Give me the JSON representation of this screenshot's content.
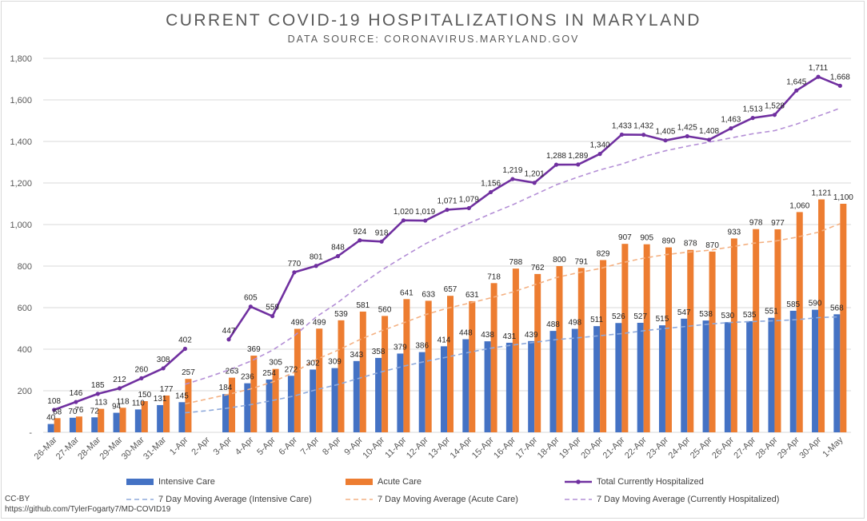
{
  "header": {
    "title": "CURRENT COVID-19 HOSPITALIZATIONS IN MARYLAND",
    "subtitle": "DATA SOURCE: CORONAVIRUS.MARYLAND.GOV"
  },
  "footer": {
    "license": "CC-BY",
    "url": "https://github.com/TylerFogarty7/MD-COVID19"
  },
  "colors": {
    "icu": "#4472c4",
    "acute": "#ed7d31",
    "total": "#7030a0",
    "avg_icu": "#8faadc",
    "avg_acute": "#f4b183",
    "avg_total": "#b48fd6"
  },
  "chart_data": {
    "type": "bar",
    "categories": [
      "26-Mar",
      "27-Mar",
      "28-Mar",
      "29-Mar",
      "30-Mar",
      "31-Mar",
      "1-Apr",
      "2-Apr",
      "3-Apr",
      "4-Apr",
      "5-Apr",
      "6-Apr",
      "7-Apr",
      "8-Apr",
      "9-Apr",
      "10-Apr",
      "11-Apr",
      "12-Apr",
      "13-Apr",
      "14-Apr",
      "15-Apr",
      "16-Apr",
      "17-Apr",
      "18-Apr",
      "19-Apr",
      "20-Apr",
      "21-Apr",
      "22-Apr",
      "23-Apr",
      "24-Apr",
      "25-Apr",
      "26-Apr",
      "27-Apr",
      "28-Apr",
      "29-Apr",
      "30-Apr",
      "1-May"
    ],
    "ylim": [
      0,
      1800
    ],
    "yticks": [
      0,
      200,
      400,
      600,
      800,
      1000,
      1200,
      1400,
      1600,
      1800
    ],
    "ytick_labels": [
      "-",
      "200",
      "400",
      "600",
      "800",
      "1,000",
      "1,200",
      "1,400",
      "1,600",
      "1,800"
    ],
    "grid": true,
    "legend_position": "bottom",
    "series": [
      {
        "name": "Intensive Care",
        "kind": "bar",
        "values": [
          40,
          70,
          72,
          94,
          110,
          131,
          145,
          null,
          184,
          236,
          254,
          272,
          302,
          309,
          343,
          358,
          379,
          386,
          414,
          448,
          438,
          431,
          439,
          488,
          498,
          511,
          526,
          527,
          515,
          547,
          538,
          530,
          535,
          551,
          585,
          590,
          568
        ]
      },
      {
        "name": "Acute Care",
        "kind": "bar",
        "values": [
          68,
          76,
          113,
          118,
          150,
          177,
          257,
          null,
          263,
          369,
          305,
          498,
          499,
          539,
          581,
          560,
          641,
          633,
          657,
          631,
          718,
          788,
          762,
          800,
          791,
          829,
          907,
          905,
          890,
          878,
          870,
          933,
          978,
          977,
          1060,
          1121,
          1100
        ]
      },
      {
        "name": "Total Currently Hospitalized",
        "kind": "line",
        "values": [
          108,
          146,
          185,
          212,
          260,
          308,
          402,
          null,
          447,
          605,
          559,
          770,
          801,
          848,
          924,
          918,
          1020,
          1019,
          1071,
          1079,
          1156,
          1219,
          1201,
          1288,
          1289,
          1340,
          1433,
          1432,
          1405,
          1425,
          1408,
          1463,
          1513,
          1528,
          1645,
          1711,
          1668
        ]
      },
      {
        "name": "7 Day Moving Average (Intensive Care)",
        "kind": "dashed",
        "values": [
          null,
          null,
          null,
          null,
          null,
          null,
          94,
          104,
          117,
          133,
          153,
          175,
          205,
          230,
          261,
          291,
          318,
          341,
          362,
          385,
          405,
          420,
          433,
          446,
          455,
          465,
          475,
          489,
          500,
          510,
          521,
          529,
          533,
          537,
          542,
          552,
          556
        ]
      },
      {
        "name": "7 Day Moving Average (Acute Care)",
        "kind": "dashed",
        "values": [
          null,
          null,
          null,
          null,
          null,
          null,
          137,
          160,
          183,
          209,
          242,
          289,
          350,
          395,
          446,
          489,
          527,
          566,
          597,
          621,
          647,
          675,
          710,
          745,
          768,
          788,
          816,
          838,
          855,
          867,
          876,
          892,
          910,
          920,
          939,
          963,
          1004
        ]
      },
      {
        "name": "7 Day Moving Average (Currently Hospitalized)",
        "kind": "dashed",
        "values": [
          null,
          null,
          null,
          null,
          null,
          null,
          231,
          264,
          300,
          342,
          395,
          464,
          555,
          625,
          707,
          780,
          845,
          907,
          959,
          1006,
          1052,
          1095,
          1143,
          1191,
          1229,
          1263,
          1291,
          1327,
          1355,
          1377,
          1397,
          1417,
          1437,
          1452,
          1483,
          1522,
          1560
        ]
      }
    ]
  },
  "legend": [
    {
      "label": "Intensive Care",
      "kind": "bar",
      "color_key": "icu"
    },
    {
      "label": "Acute Care",
      "kind": "bar",
      "color_key": "acute"
    },
    {
      "label": "Total Currently Hospitalized",
      "kind": "line",
      "color_key": "total"
    },
    {
      "label": "7 Day Moving Average (Intensive Care)",
      "kind": "dashed",
      "color_key": "avg_icu"
    },
    {
      "label": "7 Day Moving Average (Acute Care)",
      "kind": "dashed",
      "color_key": "avg_acute"
    },
    {
      "label": "7 Day Moving Average (Currently Hospitalized)",
      "kind": "dashed",
      "color_key": "avg_total"
    }
  ]
}
